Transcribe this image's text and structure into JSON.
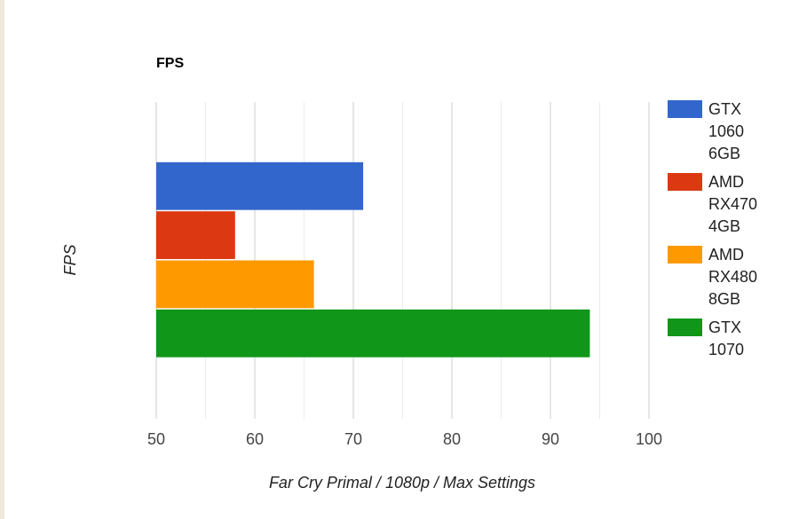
{
  "chart_data": {
    "type": "hbar",
    "title": "FPS",
    "y_label": "FPS",
    "x_label": "Far Cry Primal / 1080p / Max Settings",
    "categories": [
      null
    ],
    "series": [
      {
        "name": "GTX 1060 6GB",
        "color": "#3366cc",
        "values": [
          71
        ]
      },
      {
        "name": "AMD RX470 4GB",
        "color": "#dc3912",
        "values": [
          58
        ]
      },
      {
        "name": "AMD RX480 8GB",
        "color": "#ff9900",
        "values": [
          66
        ]
      },
      {
        "name": "GTX 1070",
        "color": "#109618",
        "values": [
          94
        ]
      }
    ],
    "xlim": [
      50,
      100
    ],
    "xticks": [
      50,
      60,
      70,
      80,
      90,
      100
    ],
    "minor_gridlines": [
      55,
      65,
      75,
      85,
      95
    ],
    "grid": true,
    "legend": "right"
  }
}
